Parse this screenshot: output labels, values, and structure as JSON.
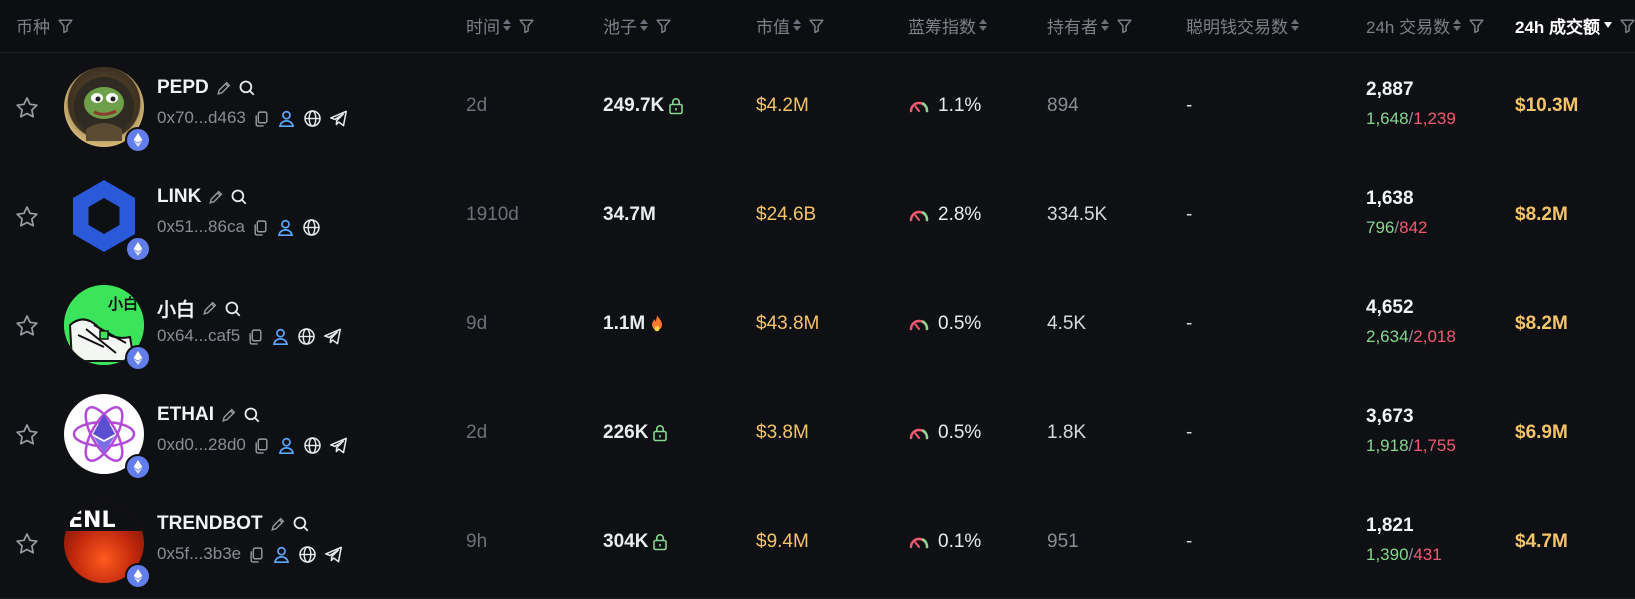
{
  "header": {
    "token": "币种",
    "age": "时间",
    "pool": "池子",
    "mcap": "市值",
    "bluechip": "蓝筹指数",
    "holders": "持有者",
    "smart_money": "聪明钱交易数",
    "txs_24h": "24h 交易数",
    "volume_24h": "24h 成交额"
  },
  "rows": [
    {
      "name": "PEPD",
      "addr": "0x70...d463",
      "age": "2d",
      "pool": "249.7K",
      "pool_icon": "lock-icon",
      "mcap": "$4.2M",
      "bluechip": "1.1%",
      "holders": "894",
      "smart": "-",
      "txs": "2,887",
      "buys": "1,648",
      "sells": "1,239",
      "volume": "$10.3M",
      "has_telegram": true,
      "holders_dim": true
    },
    {
      "name": "LINK",
      "addr": "0x51...86ca",
      "age": "1910d",
      "pool": "34.7M",
      "pool_icon": "",
      "mcap": "$24.6B",
      "bluechip": "2.8%",
      "holders": "334.5K",
      "smart": "-",
      "txs": "1,638",
      "buys": "796",
      "sells": "842",
      "volume": "$8.2M",
      "has_telegram": false,
      "holders_dim": false
    },
    {
      "name": "小白",
      "addr": "0x64...caf5",
      "age": "9d",
      "pool": "1.1M",
      "pool_icon": "fire-icon",
      "mcap": "$43.8M",
      "bluechip": "0.5%",
      "holders": "4.5K",
      "smart": "-",
      "txs": "4,652",
      "buys": "2,634",
      "sells": "2,018",
      "volume": "$8.2M",
      "has_telegram": true,
      "holders_dim": false
    },
    {
      "name": "ETHAI",
      "addr": "0xd0...28d0",
      "age": "2d",
      "pool": "226K",
      "pool_icon": "lock-icon",
      "mcap": "$3.8M",
      "bluechip": "0.5%",
      "holders": "1.8K",
      "smart": "-",
      "txs": "3,673",
      "buys": "1,918",
      "sells": "1,755",
      "volume": "$6.9M",
      "has_telegram": true,
      "holders_dim": false
    },
    {
      "name": "TRENDBOT",
      "addr": "0x5f...3b3e",
      "age": "9h",
      "pool": "304K",
      "pool_icon": "lock-icon",
      "mcap": "$9.4M",
      "bluechip": "0.1%",
      "holders": "951",
      "smart": "-",
      "txs": "1,821",
      "buys": "1,390",
      "sells": "431",
      "volume": "$4.7M",
      "has_telegram": true,
      "holders_dim": true
    }
  ],
  "avatar_texts": {
    "xiaobai": "小白",
    "trendbot": "ENL"
  },
  "colors": {
    "buy": "#86d68f",
    "sell": "#f05b72",
    "mcap": "#f3c46a",
    "eth": "#627eea"
  }
}
